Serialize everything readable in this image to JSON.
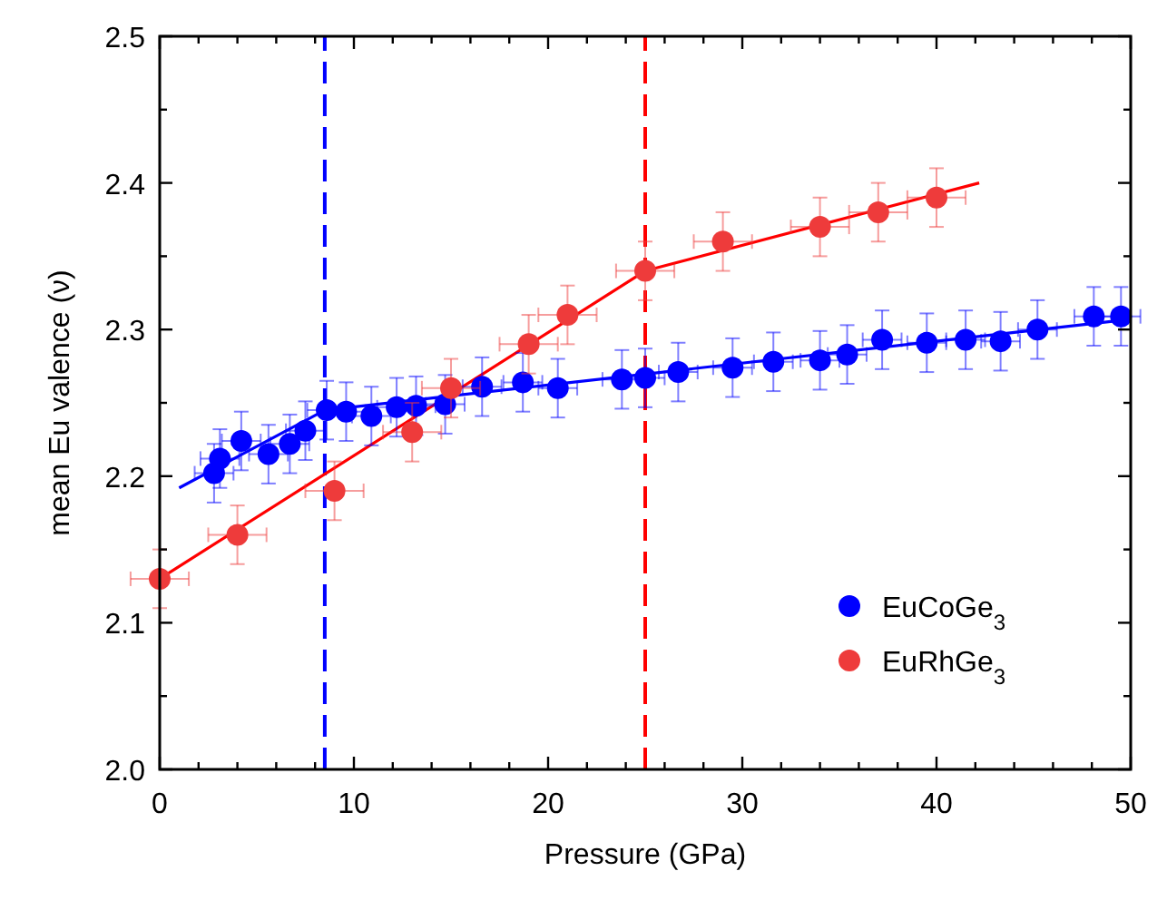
{
  "chart_data": {
    "type": "scatter",
    "xlabel": "Pressure (GPa)",
    "ylabel": "mean Eu valence (ν)",
    "xlim": [
      0,
      50
    ],
    "ylim": [
      2.0,
      2.5
    ],
    "xticks": [
      0,
      {
        "value": 2,
        "label": null
      },
      {
        "value": 4,
        "label": null
      },
      {
        "value": 6,
        "label": null
      },
      {
        "value": 8,
        "label": null
      },
      10,
      {
        "value": 12,
        "label": null
      },
      {
        "value": 14,
        "label": null
      },
      {
        "value": 16,
        "label": null
      },
      {
        "value": 18,
        "label": null
      },
      20,
      {
        "value": 22,
        "label": null
      },
      {
        "value": 24,
        "label": null
      },
      {
        "value": 26,
        "label": null
      },
      {
        "value": 28,
        "label": null
      },
      30,
      {
        "value": 32,
        "label": null
      },
      {
        "value": 34,
        "label": null
      },
      {
        "value": 36,
        "label": null
      },
      {
        "value": 38,
        "label": null
      },
      40,
      {
        "value": 42,
        "label": null
      },
      {
        "value": 44,
        "label": null
      },
      {
        "value": 46,
        "label": null
      },
      {
        "value": 48,
        "label": null
      },
      50
    ],
    "yticks": [
      {
        "value": 2.0,
        "label": "2.0"
      },
      {
        "value": 2.05,
        "label": null
      },
      {
        "value": 2.1,
        "label": "2.1"
      },
      {
        "value": 2.15,
        "label": null
      },
      {
        "value": 2.2,
        "label": "2.2"
      },
      {
        "value": 2.25,
        "label": null
      },
      {
        "value": 2.3,
        "label": "2.3"
      },
      {
        "value": 2.35,
        "label": null
      },
      {
        "value": 2.4,
        "label": "2.4"
      },
      {
        "value": 2.45,
        "label": null
      },
      {
        "value": 2.5,
        "label": "2.5"
      }
    ],
    "grid": false,
    "legend": "bottom right",
    "marker": "circle",
    "ref_lines": [
      {
        "axis": "x",
        "value": 8.5,
        "color": "#0000ff",
        "line_style": "dashed"
      },
      {
        "axis": "x",
        "value": 25,
        "color": "#ff0000",
        "line_style": "dashed"
      }
    ],
    "series": [
      {
        "type": "line",
        "marker": "none",
        "color": "#0000ff",
        "x": [
          1,
          8.5,
          50
        ],
        "values": [
          2.192,
          2.245,
          2.307
        ]
      },
      {
        "type": "line",
        "marker": "none",
        "color": "#ff0000",
        "x": [
          0,
          25,
          42.2
        ],
        "values": [
          2.13,
          2.34,
          2.4
        ]
      },
      {
        "name": "EuCoGe$_{3}$",
        "color": "#0000ff",
        "x": [
          2.8,
          3.1,
          4.2,
          5.6,
          6.7,
          7.5,
          8.6,
          9.6,
          10.9,
          12.2,
          13.2,
          14.7,
          16.6,
          18.7,
          20.5,
          23.8,
          25.0,
          26.7,
          29.5,
          31.6,
          34.0,
          35.4,
          37.2,
          39.5,
          41.5,
          43.3,
          45.2,
          48.1,
          49.5
        ],
        "values": [
          2.202,
          2.212,
          2.224,
          2.215,
          2.222,
          2.231,
          2.245,
          2.244,
          2.241,
          2.247,
          2.248,
          2.249,
          2.261,
          2.264,
          2.26,
          2.266,
          2.267,
          2.271,
          2.274,
          2.278,
          2.279,
          2.283,
          2.293,
          2.291,
          2.293,
          2.292,
          2.3,
          2.309,
          2.309
        ],
        "errors": [
          0.02,
          0.02,
          0.02,
          0.02,
          0.02,
          0.02,
          0.02,
          0.02,
          0.02,
          0.02,
          0.02,
          0.02,
          0.02,
          0.02,
          0.02,
          0.02,
          0.02,
          0.02,
          0.02,
          0.02,
          0.02,
          0.02,
          0.02,
          0.02,
          0.02,
          0.02,
          0.02,
          0.02,
          0.02
        ],
        "xerrors": [
          1,
          1,
          1,
          1,
          1,
          1,
          1,
          1,
          1,
          1,
          1,
          1,
          1,
          1,
          1,
          1,
          1,
          1,
          1,
          1,
          1,
          1,
          1,
          1,
          1,
          1,
          1,
          1,
          1
        ]
      },
      {
        "name": "EuRhGe$_{3}$",
        "color": "#ee3b3b",
        "x": [
          0,
          4,
          9,
          13,
          15,
          19,
          21,
          25,
          29,
          34,
          37,
          40
        ],
        "values": [
          2.13,
          2.16,
          2.19,
          2.23,
          2.26,
          2.29,
          2.31,
          2.34,
          2.36,
          2.37,
          2.38,
          2.39
        ],
        "errors": [
          0.02,
          0.02,
          0.02,
          0.02,
          0.02,
          0.02,
          0.02,
          0.02,
          0.02,
          0.02,
          0.02,
          0.02
        ],
        "xerrors": [
          1.5,
          1.5,
          1.5,
          1.5,
          1.5,
          1.5,
          1.5,
          1.5,
          1.5,
          1.5,
          1.5,
          1.5
        ]
      }
    ]
  }
}
